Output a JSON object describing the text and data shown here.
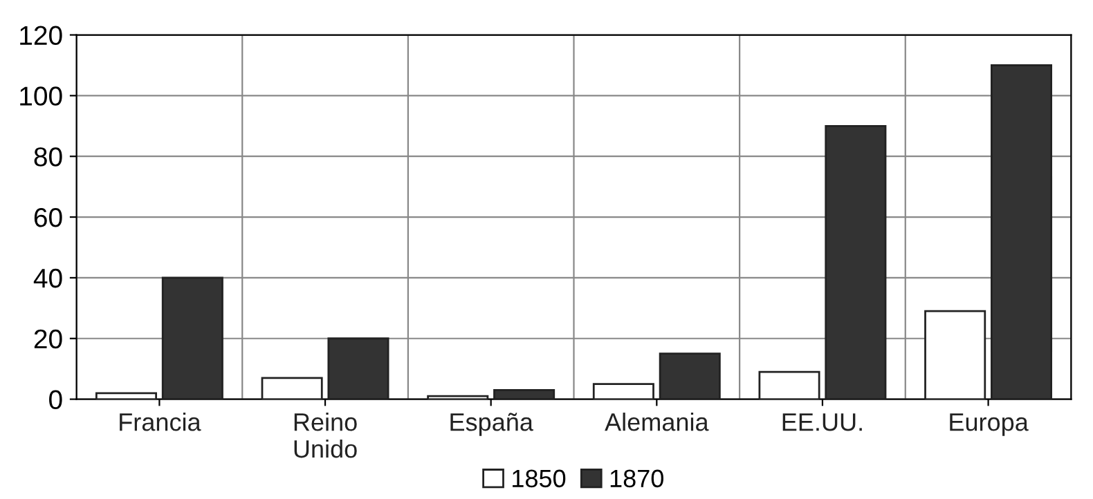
{
  "chart_data": {
    "type": "bar",
    "categories": [
      "Francia",
      "Reino\nUnido",
      "España",
      "Alemania",
      "EE.UU.",
      "Europa"
    ],
    "series": [
      {
        "name": "1850",
        "color": "#ffffff",
        "values": [
          2,
          7,
          1,
          5,
          9,
          29
        ]
      },
      {
        "name": "1870",
        "color": "#333333",
        "values": [
          40,
          20,
          3,
          15,
          90,
          110
        ]
      }
    ],
    "ylim": [
      0,
      120
    ],
    "yticks": [
      0,
      20,
      40,
      60,
      80,
      100,
      120
    ],
    "grid": true,
    "legend": "bottom"
  }
}
